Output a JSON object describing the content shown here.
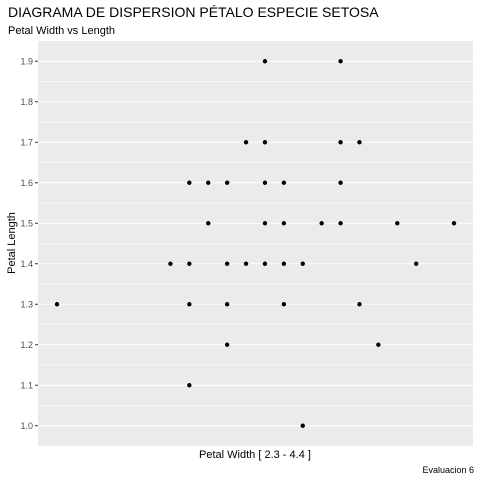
{
  "chart_data": {
    "type": "scatter",
    "title": "DIAGRAMA DE DISPERSION PÉTALO ESPECIE SETOSA",
    "subtitle": "Petal Width vs Length",
    "xlabel": "Petal Width [ 2.3 - 4.4 ]",
    "ylabel": "Petal Length",
    "caption": "Evaluacion 6",
    "xlim": [
      2.3,
      4.4
    ],
    "ylim": [
      0.95,
      1.95
    ],
    "x_ticks_shown": false,
    "y_ticks": [
      "1.0",
      "1.1",
      "1.2",
      "1.3",
      "1.4",
      "1.5",
      "1.6",
      "1.7",
      "1.8",
      "1.9"
    ],
    "grid": true,
    "legend": "none",
    "point_color": "#000000",
    "panel_color": "#ebebeb",
    "gridline_color": "#ffffff",
    "series": [
      {
        "points": [
          {
            "x": 2.3,
            "y": 1.3
          },
          {
            "x": 2.9,
            "y": 1.4
          },
          {
            "x": 3.0,
            "y": 1.6
          },
          {
            "x": 3.0,
            "y": 1.4
          },
          {
            "x": 3.0,
            "y": 1.3
          },
          {
            "x": 3.0,
            "y": 1.1
          },
          {
            "x": 3.1,
            "y": 1.6
          },
          {
            "x": 3.1,
            "y": 1.5
          },
          {
            "x": 3.2,
            "y": 1.6
          },
          {
            "x": 3.2,
            "y": 1.4
          },
          {
            "x": 3.2,
            "y": 1.3
          },
          {
            "x": 3.2,
            "y": 1.2
          },
          {
            "x": 3.3,
            "y": 1.7
          },
          {
            "x": 3.3,
            "y": 1.4
          },
          {
            "x": 3.4,
            "y": 1.9
          },
          {
            "x": 3.4,
            "y": 1.7
          },
          {
            "x": 3.4,
            "y": 1.6
          },
          {
            "x": 3.4,
            "y": 1.5
          },
          {
            "x": 3.4,
            "y": 1.4
          },
          {
            "x": 3.5,
            "y": 1.6
          },
          {
            "x": 3.5,
            "y": 1.5
          },
          {
            "x": 3.5,
            "y": 1.4
          },
          {
            "x": 3.5,
            "y": 1.3
          },
          {
            "x": 3.6,
            "y": 1.4
          },
          {
            "x": 3.6,
            "y": 1.0
          },
          {
            "x": 3.7,
            "y": 1.5
          },
          {
            "x": 3.8,
            "y": 1.9
          },
          {
            "x": 3.8,
            "y": 1.7
          },
          {
            "x": 3.8,
            "y": 1.6
          },
          {
            "x": 3.8,
            "y": 1.5
          },
          {
            "x": 3.9,
            "y": 1.7
          },
          {
            "x": 3.9,
            "y": 1.3
          },
          {
            "x": 4.0,
            "y": 1.2
          },
          {
            "x": 4.1,
            "y": 1.5
          },
          {
            "x": 4.2,
            "y": 1.4
          },
          {
            "x": 4.4,
            "y": 1.5
          }
        ]
      }
    ]
  }
}
